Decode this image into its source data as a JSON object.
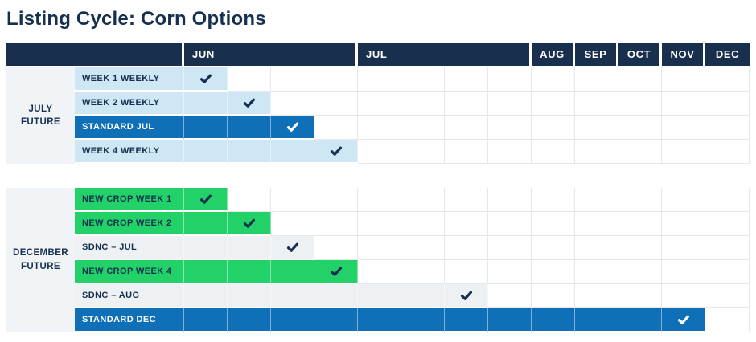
{
  "title": "Listing Cycle: Corn Options",
  "check_glyph": "✔",
  "colors": {
    "navy": "#16304f",
    "header_bg": "#182f4e",
    "light_blue": "#cfe7f4",
    "blue": "#0f70b8",
    "green": "#22d268",
    "gray_bar": "#eef1f4",
    "group_bg": "#f1f4f6",
    "gridline": "#e4e8ec"
  },
  "chart_data": {
    "type": "gantt",
    "title": "Listing Cycle: Corn Options",
    "month_headers": [
      {
        "label": "JUN",
        "span": 4
      },
      {
        "label": "JUL",
        "span": 4
      },
      {
        "label": "AUG",
        "span": 1
      },
      {
        "label": "SEP",
        "span": 1
      },
      {
        "label": "OCT",
        "span": 1
      },
      {
        "label": "NOV",
        "span": 1
      },
      {
        "label": "DEC",
        "span": 1
      }
    ],
    "columns": [
      "JUN-W1",
      "JUN-W2",
      "JUN-W3",
      "JUN-W4",
      "JUL-W1",
      "JUL-W2",
      "JUL-W3",
      "JUL-W4",
      "AUG",
      "SEP",
      "OCT",
      "NOV",
      "DEC"
    ],
    "groups": [
      {
        "label": "JULY\nFUTURE",
        "rows": [
          {
            "label": "WEEK 1 WEEKLY",
            "color": "light_blue",
            "bar_end_col": 1,
            "check_col": 1,
            "check_color": "navy",
            "label_color": "navy"
          },
          {
            "label": "WEEK 2 WEEKLY",
            "color": "light_blue",
            "bar_end_col": 2,
            "check_col": 2,
            "check_color": "navy",
            "label_color": "navy"
          },
          {
            "label": "STANDARD JUL",
            "color": "blue",
            "bar_end_col": 3,
            "check_col": 3,
            "check_color": "white",
            "label_color": "white"
          },
          {
            "label": "WEEK 4 WEEKLY",
            "color": "light_blue",
            "bar_end_col": 4,
            "check_col": 4,
            "check_color": "navy",
            "label_color": "navy"
          }
        ]
      },
      {
        "label": "DECEMBER\nFUTURE",
        "rows": [
          {
            "label": "NEW CROP WEEK 1",
            "color": "green",
            "bar_end_col": 1,
            "check_col": 1,
            "check_color": "navy",
            "label_color": "navy"
          },
          {
            "label": "NEW CROP WEEK 2",
            "color": "green",
            "bar_end_col": 2,
            "check_col": 2,
            "check_color": "navy",
            "label_color": "navy"
          },
          {
            "label": "SDNC – JUL",
            "color": "gray_bar",
            "bar_end_col": 3,
            "check_col": 3,
            "check_color": "navy",
            "label_color": "navy"
          },
          {
            "label": "NEW CROP WEEK 4",
            "color": "green",
            "bar_end_col": 4,
            "check_col": 4,
            "check_color": "navy",
            "label_color": "navy"
          },
          {
            "label": "SDNC – AUG",
            "color": "gray_bar",
            "bar_end_col": 7,
            "check_col": 7,
            "check_color": "navy",
            "label_color": "navy"
          },
          {
            "label": "STANDARD DEC",
            "color": "blue",
            "bar_end_col": 12,
            "check_col": 12,
            "check_color": "white",
            "label_color": "white"
          }
        ]
      }
    ]
  }
}
